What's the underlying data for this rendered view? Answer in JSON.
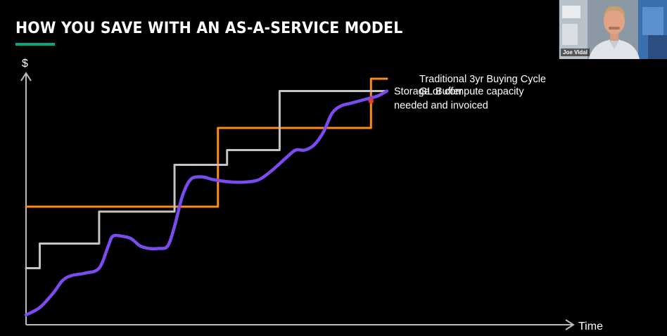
{
  "slide": {
    "title": "HOW YOU SAVE WITH AN AS-A-SERVICE MODEL",
    "accent_color": "#01a982"
  },
  "video": {
    "participant_name": "Joe Vidal",
    "icon": "participant-video-icon"
  },
  "chart_data": {
    "type": "line",
    "title": "",
    "xlabel": "Time",
    "ylabel": "$",
    "xlim": [
      0,
      10
    ],
    "ylim": [
      0,
      10
    ],
    "grid": false,
    "legend_placement": "right of series ends",
    "series": [
      {
        "name": "Traditional 3yr Buying Cycle",
        "color": "#ff8a1c",
        "shape": "step",
        "x": [
          0,
          4.2,
          4.2,
          7.55,
          7.55,
          7.9
        ],
        "y": [
          4.8,
          4.8,
          8.0,
          8.0,
          10.0,
          10.0
        ]
      },
      {
        "name": "GL Buffer",
        "color": "#c4c4c4",
        "shape": "step",
        "x": [
          0,
          0.3,
          0.3,
          1.6,
          1.6,
          3.25,
          3.25,
          4.4,
          4.4,
          5.55,
          5.55,
          7.9
        ],
        "y": [
          2.3,
          2.3,
          3.3,
          3.3,
          4.6,
          4.6,
          6.5,
          6.5,
          7.1,
          7.1,
          9.5,
          9.5
        ]
      },
      {
        "name": "Storage or compute capacity needed and invoiced",
        "color": "#7b4bf0",
        "shape": "smooth",
        "x": [
          0,
          0.3,
          0.6,
          0.8,
          1.0,
          1.3,
          1.6,
          1.8,
          1.9,
          2.1,
          2.3,
          2.5,
          2.7,
          2.9,
          3.1,
          3.25,
          3.4,
          3.5,
          3.6,
          3.7,
          3.9,
          4.1,
          4.5,
          4.8,
          5.1,
          5.4,
          5.7,
          5.9,
          6.1,
          6.3,
          6.5,
          6.7,
          6.9,
          7.1,
          7.3,
          7.5,
          7.7,
          7.9
        ],
        "y": [
          0.4,
          0.7,
          1.3,
          1.8,
          2.0,
          2.1,
          2.3,
          3.2,
          3.6,
          3.6,
          3.5,
          3.2,
          3.1,
          3.1,
          3.2,
          4.0,
          5.1,
          5.6,
          5.9,
          6.0,
          6.0,
          5.9,
          5.8,
          5.8,
          5.9,
          6.3,
          6.8,
          7.1,
          7.1,
          7.3,
          7.8,
          8.6,
          8.9,
          9.0,
          9.1,
          9.2,
          9.3,
          9.5
        ]
      }
    ],
    "labels": [
      {
        "series": 0,
        "text": "Traditional 3yr Buying Cycle"
      },
      {
        "series": 1,
        "text": "GL Buffer"
      },
      {
        "series": 2,
        "text_lines": [
          "Storage or compute capacity",
          "needed and invoiced"
        ]
      }
    ],
    "annotation_marker": {
      "color": "#e03a3a"
    }
  }
}
